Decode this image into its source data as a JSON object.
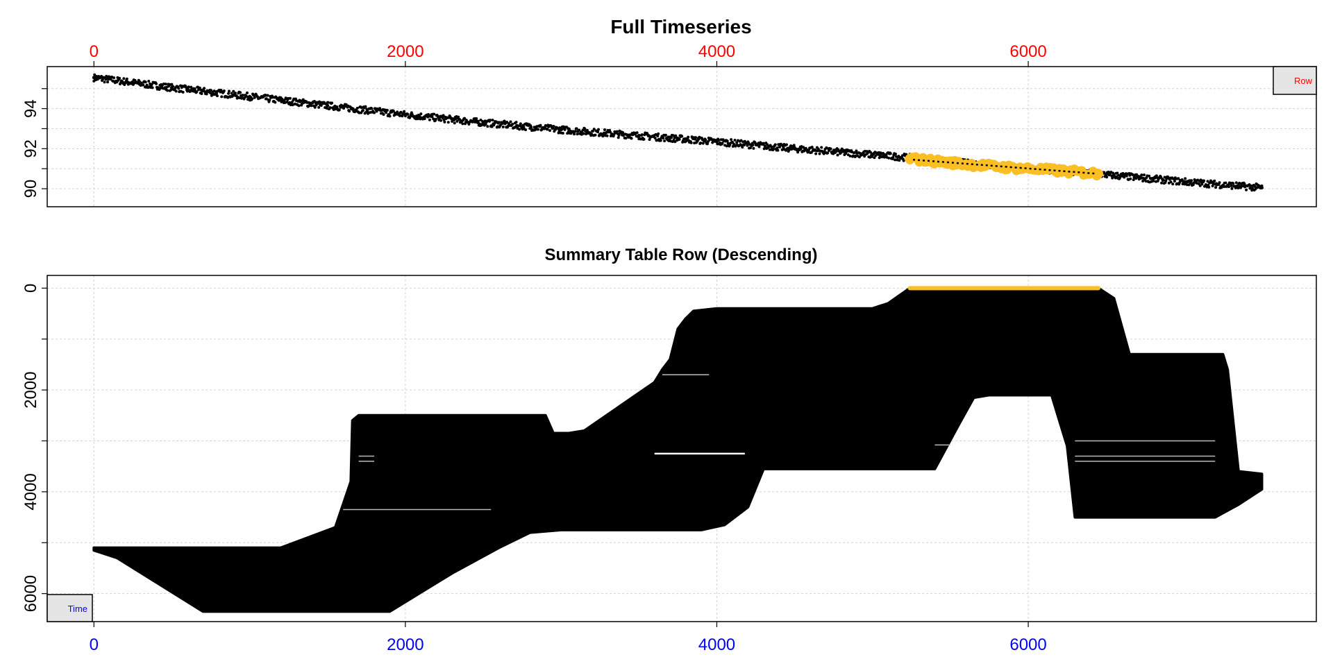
{
  "colors": {
    "top_axis": "#ff0000",
    "bottom_axis": "#0000ff",
    "points": "#000000",
    "highlight": "#fbbf24"
  },
  "buttons": {
    "row_label": "Row",
    "time_label": "Time"
  },
  "chart_data": [
    {
      "type": "scatter",
      "title": "Full Timeseries",
      "xlabel": "",
      "ylabel": "",
      "x_axis_position": "top",
      "x_tick_labels": [
        "0",
        "2000",
        "4000",
        "6000"
      ],
      "y_tick_labels": [
        "90",
        "92",
        "94"
      ],
      "xlim": [
        -300,
        7850
      ],
      "ylim": [
        89.1,
        96.1
      ],
      "grid": true,
      "series": [
        {
          "x": [
            0,
            500,
            1000,
            1500,
            2000,
            2500,
            3000,
            3500,
            4000,
            4500,
            5000,
            5240,
            5500,
            6000,
            6450,
            6500,
            7000,
            7500
          ],
          "y": [
            95.55,
            95.05,
            94.6,
            94.15,
            93.7,
            93.3,
            92.95,
            92.65,
            92.35,
            92.0,
            91.7,
            91.55,
            91.35,
            91.0,
            90.75,
            90.7,
            90.35,
            90.05
          ],
          "color": "#000000"
        },
        {
          "x": [
            5240,
            5500,
            5800,
            6100,
            6450
          ],
          "y": [
            91.5,
            91.3,
            91.1,
            90.95,
            90.75
          ],
          "color": "#fbbf24"
        }
      ],
      "trend_line": {
        "x": [
          5260,
          6440
        ],
        "y": [
          91.45,
          90.75
        ]
      }
    },
    {
      "type": "area",
      "title": "Summary Table Row (Descending)",
      "xlabel": "",
      "ylabel": "",
      "x_axis_position": "bottom",
      "x_tick_labels": [
        "0",
        "2000",
        "4000",
        "6000"
      ],
      "y_tick_labels": [
        "0",
        "2000",
        "4000",
        "6000"
      ],
      "y_reversed": true,
      "xlim": [
        -300,
        7850
      ],
      "ylim": [
        -250,
        6550
      ],
      "grid": true,
      "upper_boundary": {
        "x": [
          0,
          1200,
          1550,
          1650,
          1660,
          1700,
          2900,
          2950,
          3050,
          3150,
          3600,
          3650,
          3700,
          3750,
          3800,
          3850,
          4000,
          5000,
          5100,
          5240,
          6450,
          6550,
          6650,
          7250,
          7280,
          7350,
          7500
        ],
        "y": [
          5100,
          5100,
          4700,
          3800,
          2600,
          2500,
          2500,
          2850,
          2850,
          2800,
          1850,
          1600,
          1400,
          800,
          600,
          450,
          400,
          400,
          300,
          0,
          0,
          200,
          1300,
          1300,
          1600,
          3600,
          3650
        ]
      },
      "lower_boundary": {
        "x": [
          0,
          150,
          700,
          1900,
          2300,
          2600,
          2800,
          3000,
          3900,
          4050,
          4200,
          4300,
          5000,
          5400,
          5550,
          5650,
          5750,
          5850,
          5950,
          6150,
          6250,
          6300,
          7200,
          7350,
          7500
        ],
        "y": [
          5150,
          5300,
          6350,
          6350,
          5600,
          5100,
          4800,
          4750,
          4750,
          4650,
          4300,
          3550,
          3550,
          3550,
          2700,
          2150,
          2100,
          2100,
          2100,
          2100,
          3100,
          4500,
          4500,
          4250,
          3950
        ]
      },
      "highlight_segment": {
        "x": [
          5240,
          6450
        ],
        "y": 0
      },
      "series": [
        {
          "name": "",
          "color": "#000000"
        },
        {
          "name": "",
          "color": "#fbbf24"
        }
      ]
    }
  ]
}
